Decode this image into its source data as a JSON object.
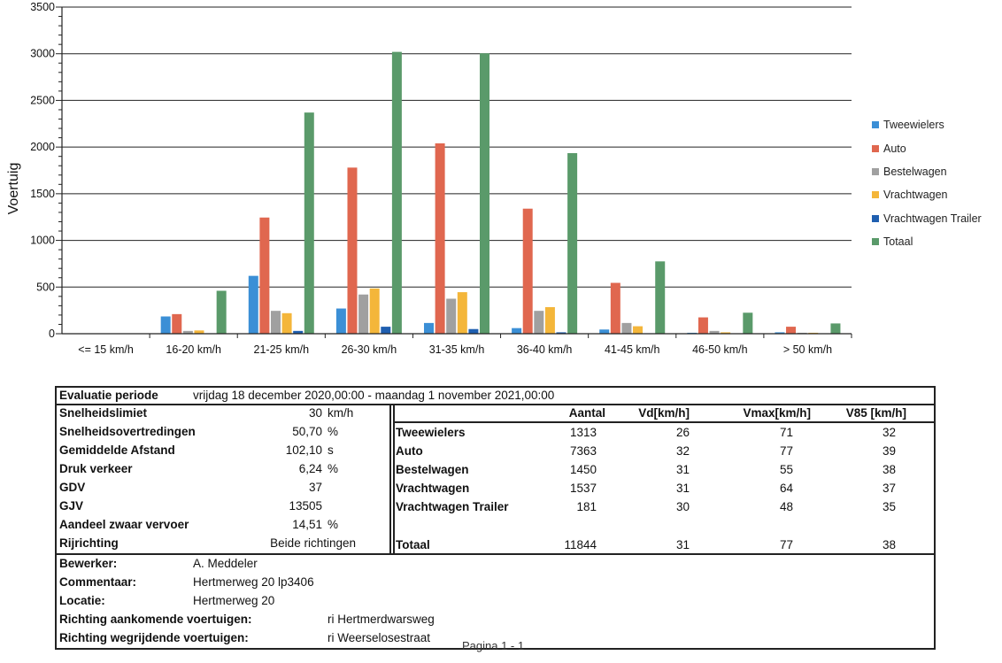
{
  "chart_data": {
    "type": "bar",
    "ylabel": "Voertuig",
    "ylim": [
      0,
      3500
    ],
    "yticks": [
      0,
      500,
      1000,
      1500,
      2000,
      2500,
      3000,
      3500
    ],
    "grid": true,
    "legend_position": "right",
    "categories": [
      "<= 15 km/h",
      "16-20 km/h",
      "21-25 km/h",
      "26-30 km/h",
      "31-35 km/h",
      "36-40 km/h",
      "41-45 km/h",
      "46-50 km/h",
      "> 50 km/h"
    ],
    "series": [
      {
        "name": "Tweewielers",
        "color": "#3b8fd6",
        "values": [
          0,
          185,
          620,
          270,
          115,
          60,
          45,
          10,
          15
        ]
      },
      {
        "name": "Auto",
        "color": "#e0674f",
        "values": [
          0,
          210,
          1245,
          1780,
          2040,
          1340,
          545,
          175,
          75
        ]
      },
      {
        "name": "Bestelwagen",
        "color": "#a0a0a0",
        "values": [
          0,
          30,
          245,
          420,
          375,
          245,
          115,
          30,
          10
        ]
      },
      {
        "name": "Vrachtwagen",
        "color": "#f4b63a",
        "values": [
          0,
          35,
          220,
          485,
          445,
          285,
          80,
          15,
          10
        ]
      },
      {
        "name": "Vrachtwagen Trailer",
        "color": "#1f5fb0",
        "values": [
          0,
          5,
          30,
          75,
          50,
          15,
          5,
          2,
          2
        ]
      },
      {
        "name": "Totaal",
        "color": "#5a9a6a",
        "values": [
          0,
          460,
          2370,
          3020,
          3005,
          1935,
          775,
          225,
          110
        ]
      }
    ]
  },
  "table": {
    "eval_label": "Evaluatie periode",
    "eval_value": "vrijdag 18 december 2020,00:00  -  maandag 1 november 2021,00:00",
    "left_rows": [
      {
        "label": "Snelheidslimiet",
        "value": "30",
        "unit": "km/h"
      },
      {
        "label": "Snelheidsovertredingen",
        "value": "50,70",
        "unit": "%"
      },
      {
        "label": "Gemiddelde Afstand",
        "value": "102,10",
        "unit": "s"
      },
      {
        "label": "Druk verkeer",
        "value": "6,24",
        "unit": "%"
      },
      {
        "label": "GDV",
        "value": "37",
        "unit": ""
      },
      {
        "label": "GJV",
        "value": "13505",
        "unit": ""
      },
      {
        "label": "Aandeel zwaar vervoer",
        "value": "14,51",
        "unit": "%"
      },
      {
        "label": "Rijrichting",
        "value": "Beide richtingen",
        "unit": ""
      }
    ],
    "headers": [
      "Aantal",
      "Vd[km/h]",
      "Vmax[km/h]",
      "V85 [km/h]"
    ],
    "right_rows": [
      {
        "label": "Tweewielers",
        "aantal": "1313",
        "vd": "26",
        "vmax": "71",
        "v85": "32"
      },
      {
        "label": "Auto",
        "aantal": "7363",
        "vd": "32",
        "vmax": "77",
        "v85": "39"
      },
      {
        "label": "Bestelwagen",
        "aantal": "1450",
        "vd": "31",
        "vmax": "55",
        "v85": "38"
      },
      {
        "label": "Vrachtwagen",
        "aantal": "1537",
        "vd": "31",
        "vmax": "64",
        "v85": "37"
      },
      {
        "label": "Vrachtwagen Trailer",
        "aantal": "181",
        "vd": "30",
        "vmax": "48",
        "v85": "35"
      }
    ],
    "total": {
      "label": "Totaal",
      "aantal": "11844",
      "vd": "31",
      "vmax": "77",
      "v85": "38"
    },
    "info": [
      {
        "label": "Bewerker:",
        "value": "A. Meddeler"
      },
      {
        "label": "Commentaar:",
        "value": "Hertmerweg 20 lp3406"
      },
      {
        "label": "Locatie:",
        "value": "Hertmerweg 20"
      },
      {
        "label": "Richting aankomende voertuigen:",
        "value": "ri Hertmerdwarsweg"
      },
      {
        "label": "Richting wegrijdende voertuigen:",
        "value": "ri Weerselosestraat"
      }
    ]
  },
  "footer": {
    "page": "Pagina 1 - 1"
  }
}
